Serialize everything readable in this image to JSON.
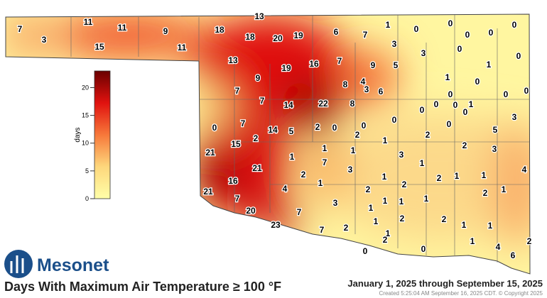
{
  "title": "Days With Maximum Air Temperature ≥ 100 °F",
  "date_range": "January 1, 2025 through September 15, 2025",
  "created": "Created 5:25:04 AM September 16, 2025 CDT. © Copyright 2025",
  "logo_text": "Mesonet",
  "colorbar": {
    "label": "days",
    "lim": [
      0,
      23
    ],
    "ticks": [
      0,
      5,
      10,
      15,
      20
    ],
    "colors": [
      "#ffffa8",
      "#fdd77c",
      "#f7783a",
      "#e0120f",
      "#6a0000"
    ]
  },
  "stations": [
    7,
    3,
    11,
    11,
    15,
    9,
    11,
    13,
    18,
    18,
    20,
    19,
    6,
    7,
    1,
    0,
    0,
    0,
    0,
    0,
    3,
    3,
    0,
    0,
    13,
    9,
    19,
    16,
    7,
    9,
    5,
    1,
    1,
    8,
    4,
    3,
    6,
    0,
    7,
    7,
    14,
    22,
    8,
    0,
    0,
    0,
    0,
    0,
    0,
    1,
    0,
    3,
    0,
    7,
    14,
    5,
    2,
    0,
    0,
    2,
    0,
    0,
    5,
    2,
    1,
    15,
    2,
    21,
    1,
    1,
    2,
    3,
    3,
    1,
    7,
    21,
    2,
    3,
    1,
    4,
    16,
    1,
    2,
    1,
    1,
    1,
    2,
    4,
    21,
    7,
    2,
    2,
    1,
    1,
    1,
    1,
    3,
    20,
    7,
    1,
    2,
    2,
    23,
    7,
    2,
    1,
    1,
    1,
    1,
    2,
    2,
    0,
    0,
    1,
    4,
    6
  ]
}
